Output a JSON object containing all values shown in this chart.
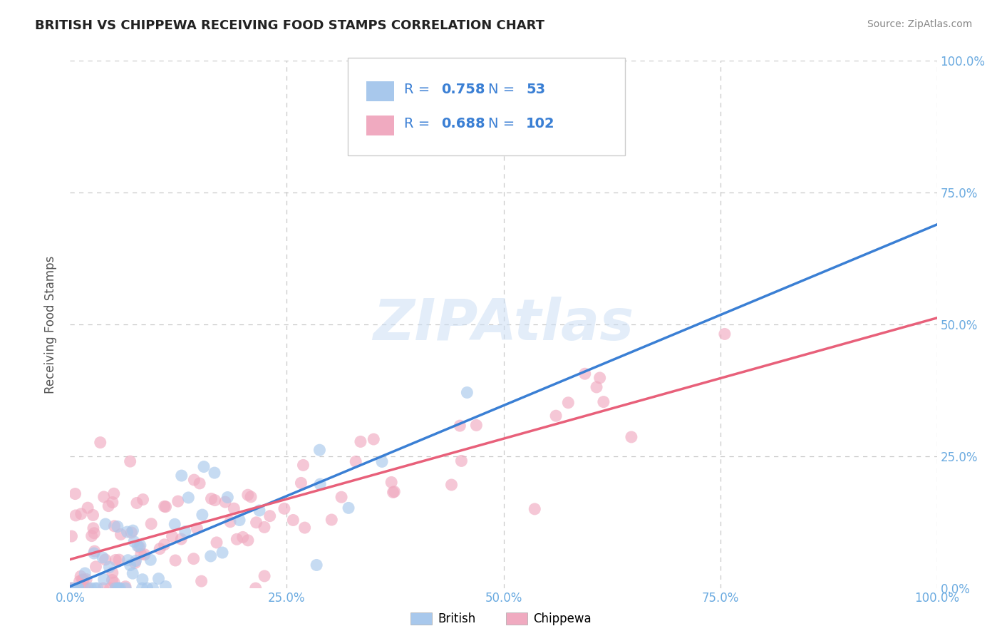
{
  "title": "BRITISH VS CHIPPEWA RECEIVING FOOD STAMPS CORRELATION CHART",
  "source": "Source: ZipAtlas.com",
  "ylabel": "Receiving Food Stamps",
  "watermark": "ZIPAtlas",
  "british_R": 0.758,
  "british_N": 53,
  "chippewa_R": 0.688,
  "chippewa_N": 102,
  "british_color": "#a8c8ec",
  "chippewa_color": "#f0aac0",
  "british_line_color": "#3a7fd4",
  "chippewa_line_color": "#e8607a",
  "background_color": "#ffffff",
  "grid_color": "#c8c8c8",
  "title_color": "#222222",
  "axis_label_color": "#555555",
  "tick_label_color": "#6aaae0",
  "legend_text_color": "#3a7fd4",
  "source_color": "#888888",
  "xlim": [
    0,
    1
  ],
  "ylim": [
    0,
    1
  ],
  "xtick_labels": [
    "0.0%",
    "25.0%",
    "50.0%",
    "75.0%",
    "100.0%"
  ],
  "ytick_labels_right": [
    "0.0%",
    "25.0%",
    "50.0%",
    "75.0%",
    "100.0%"
  ]
}
